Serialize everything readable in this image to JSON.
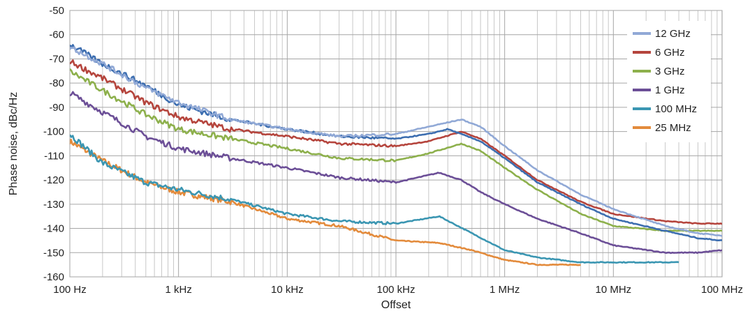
{
  "chart_data": {
    "type": "line",
    "title": "",
    "xlabel": "Offset",
    "ylabel": "Phase noise, dBc/Hz",
    "x_scale": "log",
    "xlim": [
      100,
      100000000
    ],
    "ylim": [
      -160,
      -50
    ],
    "x_ticks": [
      {
        "value": 100,
        "label": "100 Hz"
      },
      {
        "value": 1000,
        "label": "1 kHz"
      },
      {
        "value": 10000,
        "label": "10 kHz"
      },
      {
        "value": 100000,
        "label": "100 kHz"
      },
      {
        "value": 1000000,
        "label": "1 MHz"
      },
      {
        "value": 10000000,
        "label": "10 MHz"
      },
      {
        "value": 100000000,
        "label": "100 MHz"
      }
    ],
    "y_ticks": [
      -50,
      -60,
      -70,
      -80,
      -90,
      -100,
      -110,
      -120,
      -130,
      -140,
      -150,
      -160
    ],
    "grid": true,
    "legend_position": "top-right",
    "series": [
      {
        "name": "12 GHz",
        "color": "#91a9d6",
        "x": [
          100,
          200,
          500,
          1000,
          3000,
          10000,
          30000,
          100000,
          200000,
          400000,
          600000,
          1000000,
          2000000,
          5000000,
          10000000,
          30000000,
          60000000,
          100000000
        ],
        "y": [
          -65,
          -72,
          -82,
          -88,
          -95,
          -99,
          -102,
          -101,
          -98,
          -95,
          -98,
          -106,
          -116,
          -126,
          -132,
          -139,
          -142,
          -143
        ]
      },
      {
        "name": "6 GHz",
        "color": "#b5453d",
        "x": [
          100,
          200,
          500,
          1000,
          3000,
          10000,
          30000,
          100000,
          200000,
          400000,
          600000,
          1000000,
          2000000,
          5000000,
          10000000,
          30000000,
          60000000,
          100000000
        ],
        "y": [
          -71,
          -78,
          -88,
          -94,
          -99,
          -102,
          -105,
          -106,
          -104,
          -100,
          -103,
          -110,
          -120,
          -129,
          -134,
          -137,
          -138,
          -138
        ]
      },
      {
        "name": "3 GHz",
        "color": "#8db04c",
        "x": [
          100,
          200,
          500,
          1000,
          3000,
          10000,
          30000,
          100000,
          200000,
          400000,
          600000,
          1000000,
          2000000,
          5000000,
          10000000,
          30000000,
          60000000,
          100000000
        ],
        "y": [
          -75,
          -83,
          -93,
          -99,
          -103,
          -107,
          -111,
          -112,
          -109,
          -105,
          -108,
          -115,
          -124,
          -134,
          -139,
          -141,
          -141,
          -141
        ]
      },
      {
        "name": "1 GHz",
        "color": "#6c4f97",
        "x": [
          100,
          200,
          500,
          1000,
          3000,
          10000,
          30000,
          100000,
          250000,
          400000,
          600000,
          1000000,
          2000000,
          5000000,
          10000000,
          30000000,
          60000000,
          100000000
        ],
        "y": [
          -84,
          -92,
          -102,
          -107,
          -111,
          -115,
          -119,
          -121,
          -117,
          -120,
          -125,
          -130,
          -136,
          -142,
          -147,
          -150,
          -150,
          -149
        ]
      },
      {
        "name": "100 MHz",
        "color": "#3b96b2",
        "x": [
          100,
          200,
          500,
          1000,
          3000,
          10000,
          30000,
          100000,
          250000,
          500000,
          1000000,
          2000000,
          5000000,
          10000000,
          20000000,
          40000000
        ],
        "y": [
          -101,
          -113,
          -121,
          -124,
          -128,
          -134,
          -137,
          -138,
          -135,
          -142,
          -149,
          -152,
          -154,
          -154,
          -154,
          -154
        ]
      },
      {
        "name": "25 MHz",
        "color": "#e38b3c",
        "x": [
          100,
          200,
          500,
          1000,
          3000,
          10000,
          30000,
          100000,
          250000,
          500000,
          1000000,
          2000000,
          5000000
        ],
        "y": [
          -104,
          -112,
          -121,
          -125,
          -129,
          -136,
          -139,
          -145,
          -146,
          -149,
          -153,
          -155,
          -155
        ]
      },
      {
        "name": "",
        "color": "#3d6eb0",
        "x": [
          100,
          200,
          500,
          1000,
          3000,
          10000,
          30000,
          100000,
          200000,
          300000,
          600000,
          1000000,
          2000000,
          5000000,
          10000000,
          30000000,
          60000000,
          100000000
        ],
        "y": [
          -64,
          -72,
          -81,
          -89,
          -95,
          -99,
          -102,
          -103,
          -101,
          -99,
          -104,
          -111,
          -121,
          -130,
          -136,
          -141,
          -144,
          -145
        ]
      }
    ]
  }
}
